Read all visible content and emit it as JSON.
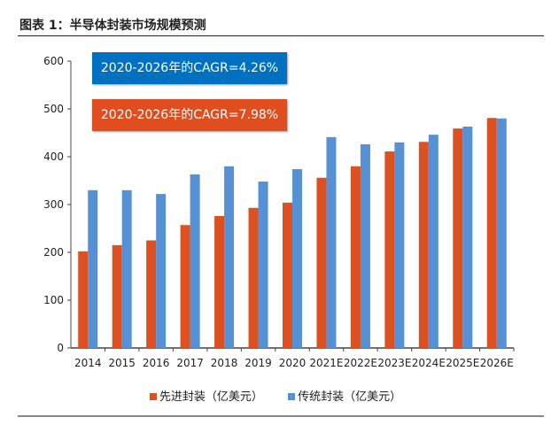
{
  "header": {
    "title": "图表 1：半导体封装市场规模预测"
  },
  "annotations": [
    {
      "text": "2020-2026年的CAGR=4.26%",
      "color": "#0070C0"
    },
    {
      "text": "2020-2026年的CAGR=7.98%",
      "color": "#E04E1F"
    }
  ],
  "chart_data": {
    "type": "bar",
    "title": "",
    "xlabel": "",
    "ylabel": "",
    "ylim": [
      0,
      600
    ],
    "yticks": [
      0,
      100,
      200,
      300,
      400,
      500,
      600
    ],
    "categories": [
      "2014",
      "2015",
      "2016",
      "2017",
      "2018",
      "2019",
      "2020",
      "2021E",
      "2022E",
      "2023E",
      "2024E",
      "2025E",
      "2026E"
    ],
    "series": [
      {
        "name": "先进封装（亿美元）",
        "color": "#DD5020",
        "values": [
          202,
          215,
          225,
          257,
          276,
          293,
          304,
          356,
          380,
          411,
          431,
          459,
          481
        ]
      },
      {
        "name": "传统封装（亿美元）",
        "color": "#5690D5",
        "values": [
          330,
          330,
          322,
          363,
          380,
          348,
          374,
          441,
          426,
          430,
          446,
          463,
          480
        ]
      }
    ],
    "grid": false,
    "legend": "bottom"
  }
}
